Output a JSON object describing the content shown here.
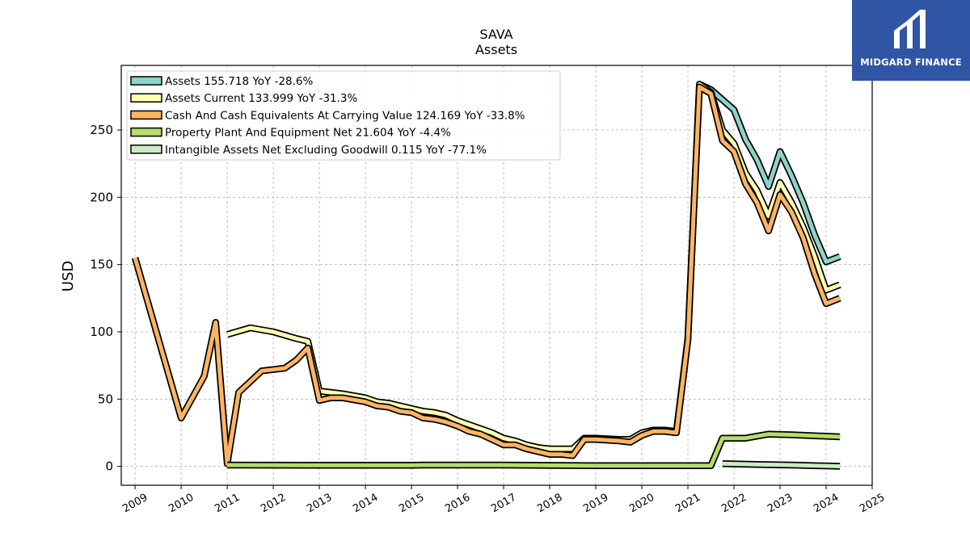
{
  "chart_data": {
    "type": "line",
    "title": "SAVA",
    "subtitle": "Assets",
    "ylabel": "USD",
    "xlabel": "",
    "xlim": [
      2008.7,
      2025.0
    ],
    "ylim": [
      -14,
      298
    ],
    "x_ticks": [
      "2009",
      "2010",
      "2011",
      "2012",
      "2013",
      "2014",
      "2015",
      "2016",
      "2017",
      "2018",
      "2019",
      "2020",
      "2021",
      "2022",
      "2023",
      "2024",
      "2025"
    ],
    "y_ticks": [
      "0",
      "50",
      "100",
      "150",
      "200",
      "250"
    ],
    "grid": true,
    "legend_position": "top-left",
    "series": [
      {
        "name": "Assets",
        "legend_label": "Assets  155.718 YoY -28.6%",
        "color": "#8dd3c7",
        "points": [
          [
            2021.25,
            284
          ],
          [
            2021.5,
            280
          ],
          [
            2022.0,
            265
          ],
          [
            2022.25,
            243
          ],
          [
            2022.5,
            228
          ],
          [
            2022.75,
            208
          ],
          [
            2023.0,
            234
          ],
          [
            2023.25,
            216
          ],
          [
            2023.5,
            196
          ],
          [
            2023.75,
            172
          ],
          [
            2024.0,
            152
          ],
          [
            2024.3,
            156
          ]
        ]
      },
      {
        "name": "Assets Current",
        "legend_label": "Assets Current  133.999 YoY -31.3%",
        "color": "#ffffb3",
        "points": [
          [
            2011.0,
            98
          ],
          [
            2011.5,
            103
          ],
          [
            2012.0,
            100
          ],
          [
            2012.5,
            95
          ],
          [
            2012.75,
            93
          ],
          [
            2013.0,
            56
          ],
          [
            2013.25,
            55
          ],
          [
            2013.5,
            54
          ],
          [
            2014.0,
            51
          ],
          [
            2014.25,
            48
          ],
          [
            2014.5,
            47
          ],
          [
            2015.0,
            43
          ],
          [
            2015.25,
            41
          ],
          [
            2015.5,
            40
          ],
          [
            2015.75,
            38
          ],
          [
            2016.0,
            34
          ],
          [
            2016.25,
            31
          ],
          [
            2016.5,
            28
          ],
          [
            2016.75,
            25
          ],
          [
            2017.0,
            21
          ],
          [
            2017.25,
            19
          ],
          [
            2017.5,
            16
          ],
          [
            2017.75,
            14
          ],
          [
            2018.0,
            13
          ],
          [
            2018.25,
            13
          ],
          [
            2018.5,
            13
          ],
          [
            2018.75,
            21
          ],
          [
            2019.0,
            21
          ],
          [
            2019.5,
            20
          ],
          [
            2019.75,
            20
          ],
          [
            2020.0,
            25
          ],
          [
            2020.25,
            27
          ],
          [
            2020.5,
            27
          ],
          [
            2020.75,
            26
          ],
          [
            2021.0,
            95
          ],
          [
            2021.25,
            284
          ],
          [
            2021.5,
            278
          ],
          [
            2021.75,
            250
          ],
          [
            2022.0,
            240
          ],
          [
            2022.25,
            218
          ],
          [
            2022.5,
            205
          ],
          [
            2022.75,
            186
          ],
          [
            2023.0,
            211
          ],
          [
            2023.25,
            196
          ],
          [
            2023.5,
            178
          ],
          [
            2023.75,
            156
          ],
          [
            2024.0,
            131
          ],
          [
            2024.3,
            135
          ]
        ]
      },
      {
        "name": "Cash And Cash Equivalents At Carrying Value",
        "legend_label": "Cash And Cash Equivalents At Carrying Value  124.169 YoY -33.8%",
        "color": "#fdb462",
        "points": [
          [
            2009.0,
            155
          ],
          [
            2010.0,
            36
          ],
          [
            2010.5,
            67
          ],
          [
            2010.75,
            107
          ],
          [
            2011.0,
            2
          ],
          [
            2011.25,
            55
          ],
          [
            2011.5,
            63
          ],
          [
            2011.75,
            71
          ],
          [
            2012.0,
            72
          ],
          [
            2012.25,
            73
          ],
          [
            2012.5,
            79
          ],
          [
            2012.75,
            88
          ],
          [
            2013.0,
            49
          ],
          [
            2013.25,
            51
          ],
          [
            2013.5,
            51
          ],
          [
            2014.0,
            48
          ],
          [
            2014.25,
            45
          ],
          [
            2014.5,
            44
          ],
          [
            2014.75,
            41
          ],
          [
            2015.0,
            40
          ],
          [
            2015.25,
            36
          ],
          [
            2015.5,
            35
          ],
          [
            2015.75,
            33
          ],
          [
            2016.0,
            30
          ],
          [
            2016.25,
            26
          ],
          [
            2016.5,
            24
          ],
          [
            2016.75,
            20
          ],
          [
            2017.0,
            16
          ],
          [
            2017.25,
            16
          ],
          [
            2017.5,
            13
          ],
          [
            2017.75,
            11
          ],
          [
            2018.0,
            9
          ],
          [
            2018.25,
            9
          ],
          [
            2018.5,
            8
          ],
          [
            2018.75,
            20
          ],
          [
            2019.0,
            20
          ],
          [
            2019.5,
            19
          ],
          [
            2019.75,
            18
          ],
          [
            2020.0,
            23
          ],
          [
            2020.25,
            26
          ],
          [
            2020.5,
            26
          ],
          [
            2020.75,
            25
          ],
          [
            2021.0,
            94
          ],
          [
            2021.25,
            282
          ],
          [
            2021.5,
            277
          ],
          [
            2021.75,
            242
          ],
          [
            2022.0,
            234
          ],
          [
            2022.25,
            210
          ],
          [
            2022.5,
            196
          ],
          [
            2022.75,
            175
          ],
          [
            2023.0,
            202
          ],
          [
            2023.25,
            189
          ],
          [
            2023.5,
            170
          ],
          [
            2023.75,
            143
          ],
          [
            2024.0,
            121
          ],
          [
            2024.3,
            125
          ]
        ]
      },
      {
        "name": "Property Plant And Equipment Net",
        "legend_label": "Property Plant And Equipment Net  21.604 YoY -4.4%",
        "color": "#b3de69",
        "points": [
          [
            2011.0,
            1
          ],
          [
            2013.0,
            0.8
          ],
          [
            2015.0,
            0.8
          ],
          [
            2015.25,
            1.0
          ],
          [
            2017.0,
            1.0
          ],
          [
            2019.0,
            0.6
          ],
          [
            2021.0,
            0.6
          ],
          [
            2021.5,
            0.6
          ],
          [
            2021.75,
            21
          ],
          [
            2022.0,
            21
          ],
          [
            2022.25,
            21
          ],
          [
            2022.75,
            24
          ],
          [
            2023.25,
            23.5
          ],
          [
            2024.3,
            22
          ]
        ]
      },
      {
        "name": "Intangible Assets Net Excluding Goodwill",
        "legend_label": "Intangible Assets Net Excluding Goodwill  0.115 YoY -77.1%",
        "color": "#ccebc5",
        "points": [
          [
            2021.75,
            2
          ],
          [
            2022.5,
            1.5
          ],
          [
            2023.25,
            1
          ],
          [
            2024.3,
            0.1
          ]
        ]
      }
    ]
  },
  "logo": {
    "text": "MIDGARD FINANCE",
    "mark_icon": "midgard-logo-icon",
    "background": "#2f55a4"
  }
}
